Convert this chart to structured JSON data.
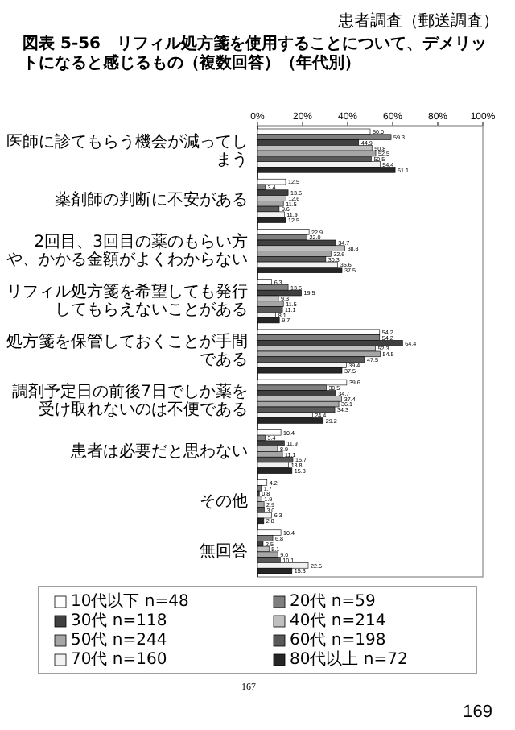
{
  "chart_data": {
    "type": "bar",
    "orientation": "horizontal",
    "title": "図表 5-56　リフィル処方箋を使用することについて、デメリットになると感じるもの（複数回答）（年代別）",
    "annotations": [
      "患者調査（郵送調査）",
      "167",
      "169"
    ],
    "categories": [
      "医師に診てもらう機会が減ってしまう",
      "薬剤師の判断に不安がある",
      "2回目、3回目の薬のもらい方や、かかる金額がよくわからない",
      "リフィル処方箋を希望しても発行してもらえないことがある",
      "処方箋を保管しておくことが手間である",
      "調剤予定日の前後7日でしか薬を受け取れないのは不便である",
      "患者は必要だと思わない",
      "その他",
      "無回答"
    ],
    "xlim": [
      0,
      100
    ],
    "xticks": [
      {
        "value": 0,
        "label": "0%"
      },
      {
        "value": 20,
        "label": "20%"
      },
      {
        "value": 40,
        "label": "40%"
      },
      {
        "value": 60,
        "label": "60%"
      },
      {
        "value": 80,
        "label": "80%"
      },
      {
        "value": 100,
        "label": "100%"
      }
    ],
    "legend": "bottom",
    "series": [
      {
        "name": "10代以下 n=48",
        "color": "#ffffff",
        "values": [
          50.0,
          12.5,
          22.9,
          6.3,
          54.2,
          39.6,
          10.4,
          4.2,
          10.4
        ],
        "value_labels": [
          "50.0",
          "12.5",
          "22.9",
          "6.3",
          "54.2",
          "39.6",
          "10.4",
          "4.2",
          "10.4"
        ]
      },
      {
        "name": "20代 n=59",
        "color": "#7f7f7f",
        "values": [
          59.3,
          3.4,
          22.0,
          13.6,
          54.2,
          30.5,
          3.4,
          1.7,
          6.8
        ],
        "value_labels": [
          "59.3",
          "3.4",
          "22.0",
          "13.6",
          "54.2",
          "30.5",
          "3.4",
          "1.7",
          "6.8"
        ]
      },
      {
        "name": "30代 n=118",
        "color": "#404040",
        "values": [
          44.9,
          13.6,
          34.7,
          19.5,
          64.4,
          34.7,
          11.9,
          0.8,
          2.5
        ],
        "value_labels": [
          "44.9",
          "13.6",
          "34.7",
          "19.5",
          "64.4",
          "34.7",
          "11.9",
          "0.8",
          "2.5"
        ]
      },
      {
        "name": "40代 n=214",
        "color": "#bfbfbf",
        "values": [
          50.8,
          12.6,
          38.8,
          9.3,
          52.3,
          37.4,
          8.9,
          1.9,
          5.1
        ],
        "value_labels": [
          "50.8",
          "12.6",
          "38.8",
          "9.3",
          "52.3",
          "37.4",
          "8.9",
          "1.9",
          "5.1"
        ]
      },
      {
        "name": "50代 n=244",
        "color": "#a6a6a6",
        "values": [
          52.5,
          11.5,
          32.6,
          11.5,
          54.5,
          36.1,
          11.1,
          2.9,
          9.0
        ],
        "value_labels": [
          "52.5",
          "11.5",
          "32.6",
          "11.5",
          "54.5",
          "36.1",
          "11.1",
          "2.9",
          "9.0"
        ]
      },
      {
        "name": "60代 n=198",
        "color": "#595959",
        "values": [
          50.5,
          9.6,
          30.3,
          11.1,
          47.5,
          34.3,
          15.7,
          3.0,
          10.1
        ],
        "value_labels": [
          "50.5",
          "9.6",
          "30.3",
          "11.1",
          "47.5",
          "34.3",
          "15.7",
          "3.0",
          "10.1"
        ]
      },
      {
        "name": "70代 n=160",
        "color": "#f2f2f2",
        "values": [
          54.4,
          11.9,
          35.6,
          8.1,
          39.4,
          24.4,
          13.8,
          6.3,
          22.5
        ],
        "value_labels": [
          "54.4",
          "11.9",
          "35.6",
          "8.1",
          "39.4",
          "24.4",
          "13.8",
          "6.3",
          "22.5"
        ]
      },
      {
        "name": "80代以上 n=72",
        "color": "#262626",
        "values": [
          61.1,
          12.5,
          37.5,
          9.7,
          37.5,
          29.2,
          15.3,
          2.8,
          15.3
        ],
        "value_labels": [
          "61.1",
          "12.5",
          "37.5",
          "9.7",
          "37.5",
          "29.2",
          "15.3",
          "2.8",
          "15.3"
        ]
      }
    ]
  }
}
